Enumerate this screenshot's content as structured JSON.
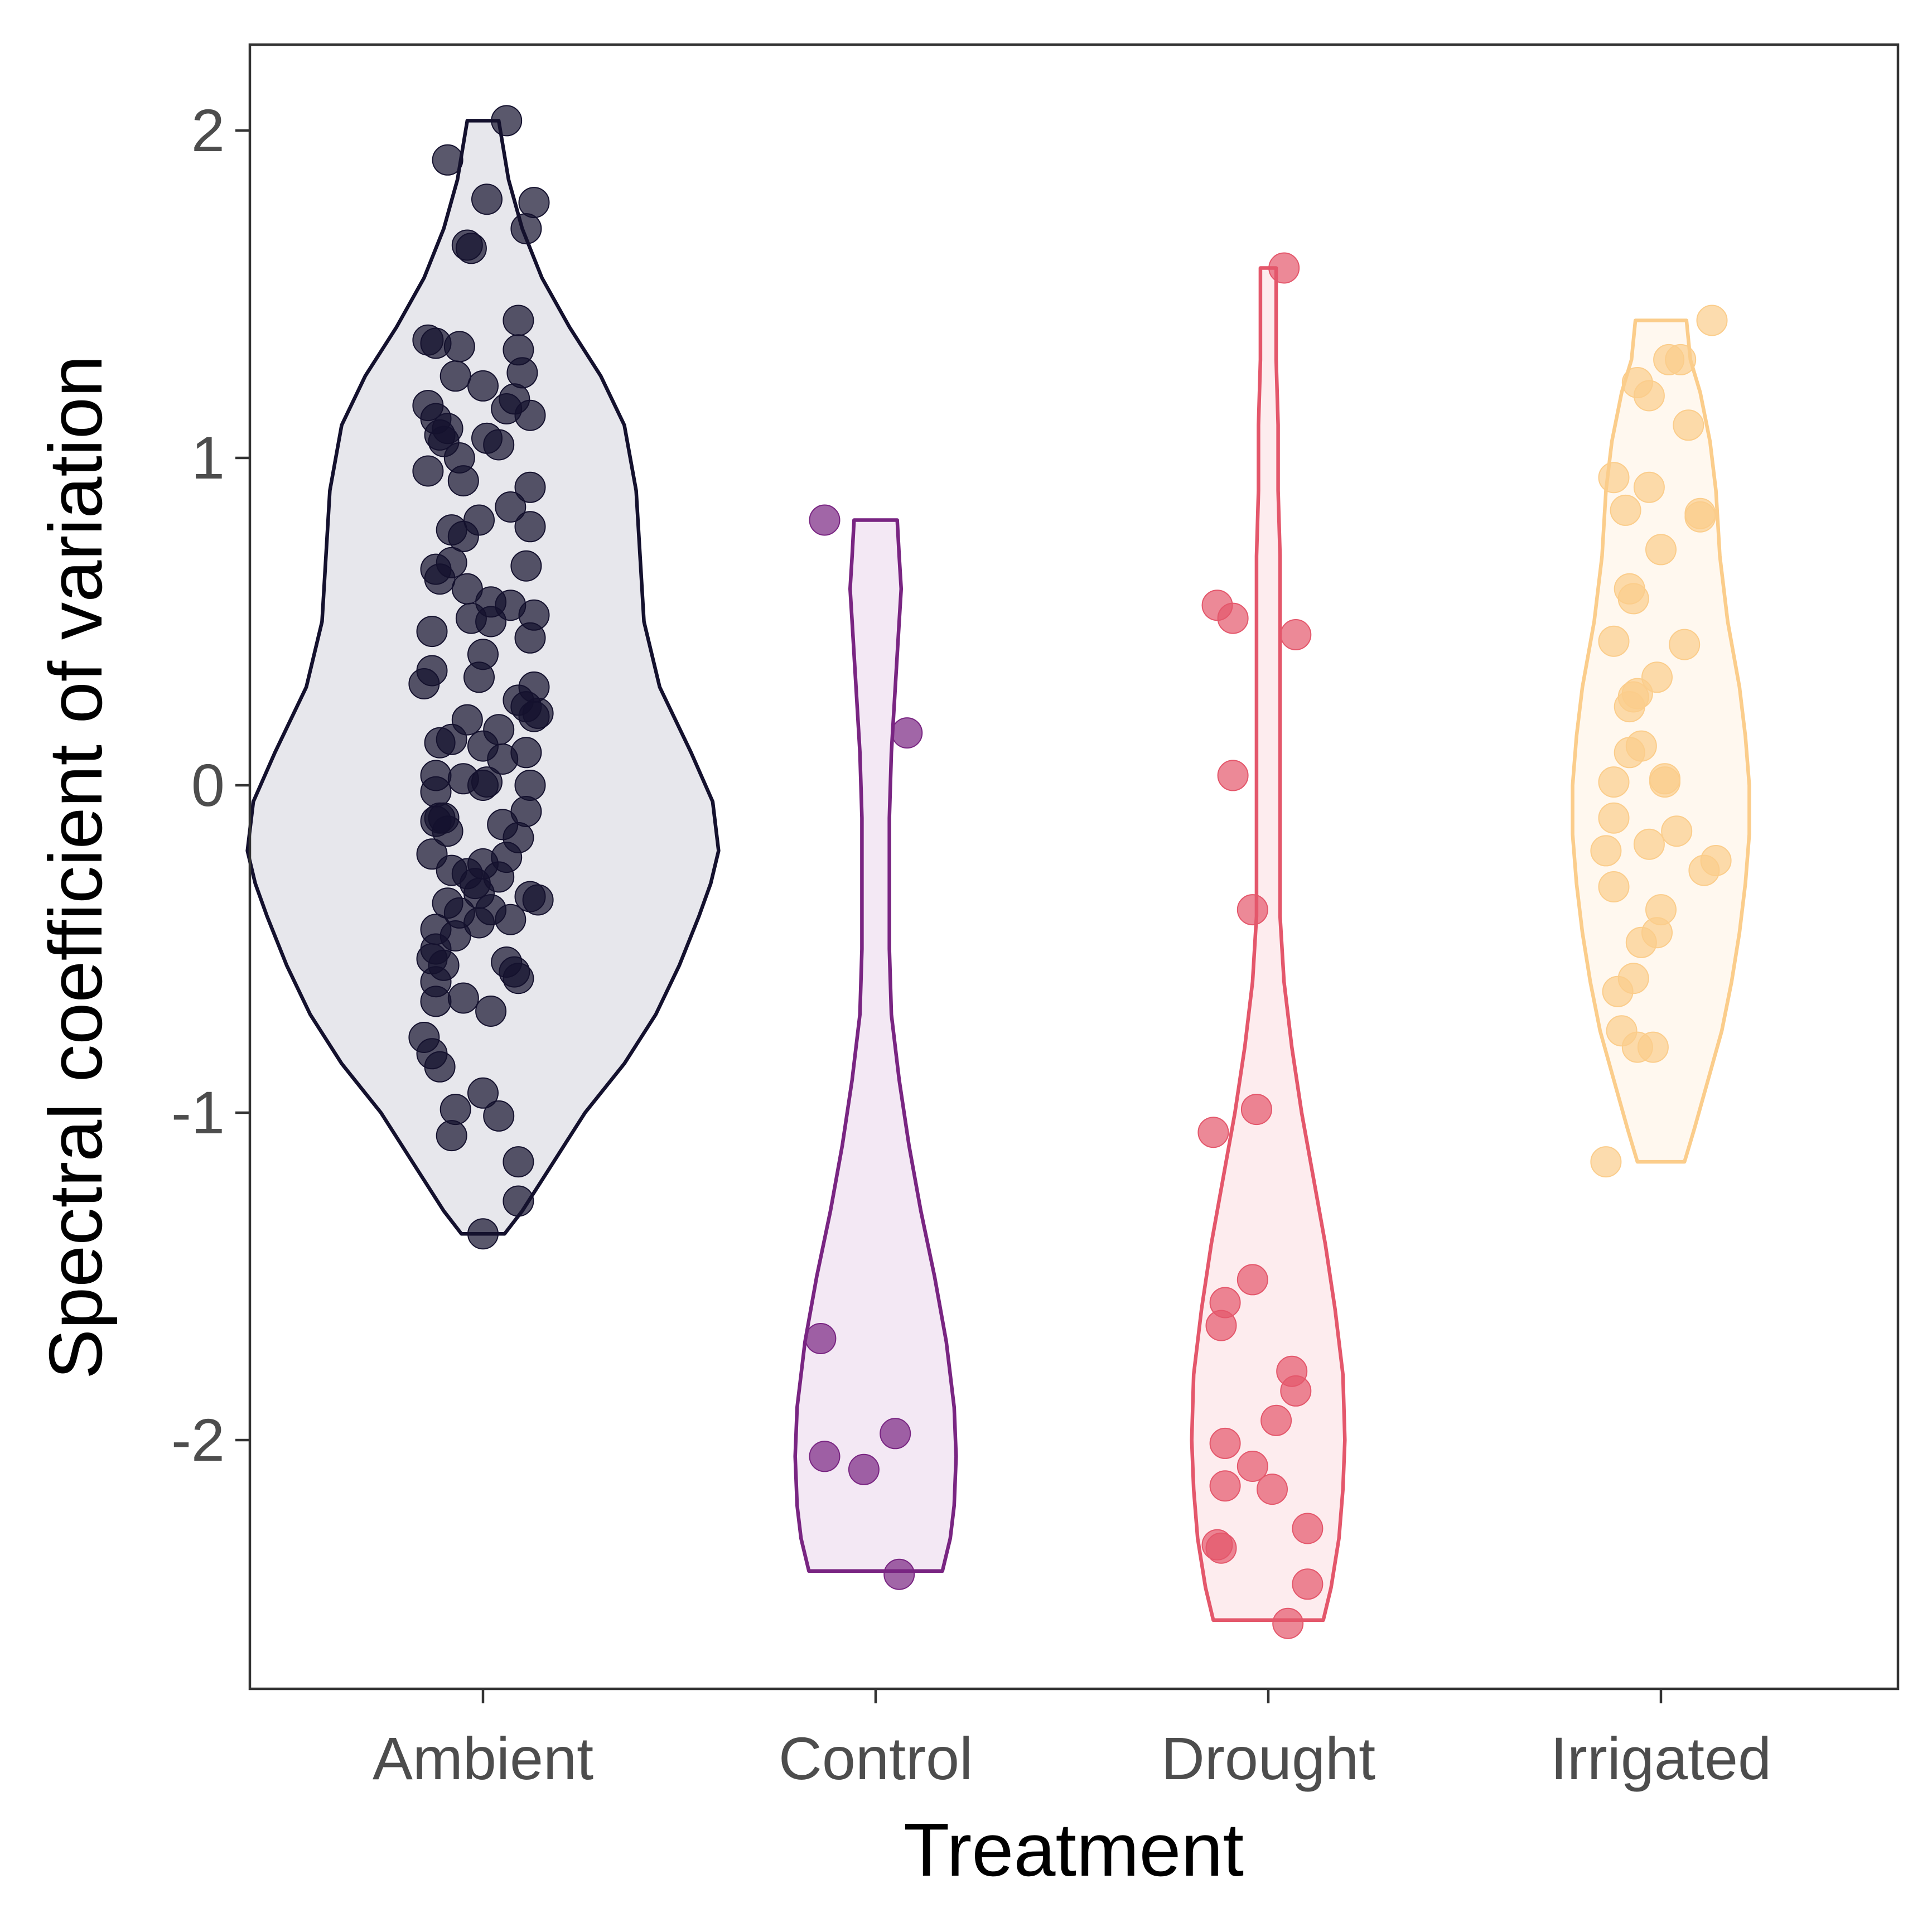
{
  "chart_data": {
    "type": "violin",
    "xlabel": "Treatment",
    "ylabel": "Spectral coefficient of variation",
    "categories": [
      "Ambient",
      "Control",
      "Drought",
      "Irrigated"
    ],
    "ylim": [
      -2.8,
      2.25
    ],
    "yticks": [
      -2,
      -1,
      0,
      1,
      2
    ],
    "ytick_labels": [
      "-2",
      "-1",
      "0",
      "1",
      "2"
    ],
    "grid": false,
    "legend": "none",
    "series": [
      {
        "category": "Ambient",
        "color": "#14112e",
        "fill": "#e7e7ec",
        "range": [
          -1.37,
          2.03
        ],
        "violin_width": [
          [
            -1.37,
            0.11
          ],
          [
            -1.3,
            0.2
          ],
          [
            -1.15,
            0.36
          ],
          [
            -1.0,
            0.52
          ],
          [
            -0.85,
            0.72
          ],
          [
            -0.7,
            0.88
          ],
          [
            -0.55,
            1.0
          ],
          [
            -0.4,
            1.1
          ],
          [
            -0.3,
            1.16
          ],
          [
            -0.2,
            1.2
          ],
          [
            -0.05,
            1.17
          ],
          [
            0.1,
            1.06
          ],
          [
            0.3,
            0.9
          ],
          [
            0.5,
            0.82
          ],
          [
            0.7,
            0.8
          ],
          [
            0.9,
            0.78
          ],
          [
            1.1,
            0.72
          ],
          [
            1.25,
            0.6
          ],
          [
            1.4,
            0.44
          ],
          [
            1.55,
            0.3
          ],
          [
            1.7,
            0.2
          ],
          [
            1.85,
            0.13
          ],
          [
            2.03,
            0.08
          ]
        ],
        "points": [
          2.03,
          1.91,
          1.79,
          1.78,
          1.7,
          1.65,
          1.64,
          1.42,
          1.36,
          1.35,
          1.34,
          1.33,
          1.26,
          1.25,
          1.22,
          1.18,
          1.16,
          1.15,
          1.13,
          1.12,
          1.09,
          1.07,
          1.06,
          1.05,
          1.04,
          1.0,
          0.96,
          0.93,
          0.91,
          0.85,
          0.81,
          0.79,
          0.78,
          0.76,
          0.68,
          0.67,
          0.66,
          0.63,
          0.6,
          0.56,
          0.55,
          0.52,
          0.51,
          0.5,
          0.47,
          0.45,
          0.4,
          0.35,
          0.33,
          0.31,
          0.3,
          0.26,
          0.24,
          0.22,
          0.21,
          0.2,
          0.17,
          0.14,
          0.13,
          0.12,
          0.1,
          0.08,
          0.03,
          0.02,
          0.01,
          0.0,
          0.0,
          -0.02,
          -0.08,
          -0.1,
          -0.1,
          -0.11,
          -0.12,
          -0.14,
          -0.16,
          -0.21,
          -0.22,
          -0.24,
          -0.26,
          -0.27,
          -0.28,
          -0.3,
          -0.33,
          -0.34,
          -0.35,
          -0.36,
          -0.38,
          -0.39,
          -0.41,
          -0.42,
          -0.44,
          -0.46,
          -0.5,
          -0.53,
          -0.54,
          -0.55,
          -0.57,
          -0.59,
          -0.6,
          -0.65,
          -0.66,
          -0.69,
          -0.77,
          -0.82,
          -0.86,
          -0.94,
          -0.99,
          -1.01,
          -1.07,
          -1.15,
          -1.27,
          -1.37
        ],
        "jitter": [
          0.06,
          -0.09,
          0.01,
          0.13,
          0.11,
          -0.04,
          -0.03,
          0.09,
          -0.14,
          -0.12,
          -0.06,
          0.09,
          0.1,
          -0.07,
          0.0,
          0.08,
          -0.14,
          0.06,
          0.12,
          -0.12,
          -0.09,
          -0.11,
          0.01,
          -0.1,
          0.04,
          -0.06,
          -0.14,
          -0.05,
          0.12,
          0.07,
          -0.01,
          0.12,
          -0.08,
          -0.05,
          -0.08,
          0.11,
          -0.12,
          -0.11,
          -0.04,
          0.02,
          0.07,
          0.13,
          -0.03,
          0.02,
          -0.13,
          0.12,
          0.0,
          -0.13,
          -0.01,
          -0.15,
          0.13,
          0.09,
          0.11,
          0.14,
          0.13,
          -0.04,
          0.04,
          -0.08,
          -0.11,
          0.0,
          0.11,
          0.05,
          -0.12,
          -0.05,
          0.01,
          0.0,
          0.12,
          -0.12,
          0.11,
          -0.11,
          -0.1,
          -0.12,
          0.05,
          -0.09,
          0.09,
          -0.13,
          0.06,
          0.0,
          -0.08,
          -0.04,
          0.04,
          -0.02,
          -0.01,
          0.12,
          0.14,
          -0.09,
          0.02,
          -0.06,
          0.07,
          -0.01,
          -0.12,
          -0.07,
          -0.12,
          -0.13,
          0.06,
          -0.1,
          0.08,
          0.09,
          -0.12,
          -0.05,
          -0.12,
          0.02,
          -0.15,
          -0.13,
          -0.11,
          0.0,
          -0.07,
          0.04,
          -0.08,
          0.09,
          0.09,
          0.0
        ]
      },
      {
        "category": "Control",
        "color": "#792582",
        "fill": "#f3e8f4",
        "range": [
          -2.4,
          0.81
        ],
        "violin_width": [
          [
            -2.4,
            0.34
          ],
          [
            -2.3,
            0.38
          ],
          [
            -2.2,
            0.4
          ],
          [
            -2.05,
            0.41
          ],
          [
            -1.9,
            0.4
          ],
          [
            -1.7,
            0.36
          ],
          [
            -1.5,
            0.3
          ],
          [
            -1.3,
            0.23
          ],
          [
            -1.1,
            0.17
          ],
          [
            -0.9,
            0.12
          ],
          [
            -0.7,
            0.08
          ],
          [
            -0.5,
            0.07
          ],
          [
            -0.3,
            0.07
          ],
          [
            -0.1,
            0.07
          ],
          [
            0.1,
            0.08
          ],
          [
            0.3,
            0.1
          ],
          [
            0.5,
            0.12
          ],
          [
            0.6,
            0.13
          ],
          [
            0.7,
            0.12
          ],
          [
            0.81,
            0.11
          ]
        ],
        "points": [
          0.81,
          0.16,
          -1.69,
          -1.98,
          -2.05,
          -2.09,
          -2.41
        ],
        "jitter": [
          -0.13,
          0.08,
          -0.14,
          0.05,
          -0.13,
          -0.03,
          0.06
        ]
      },
      {
        "category": "Drought",
        "color": "#e4576b",
        "fill": "#fdecee",
        "range": [
          -2.55,
          1.58
        ],
        "violin_width": [
          [
            -2.55,
            0.28
          ],
          [
            -2.45,
            0.32
          ],
          [
            -2.3,
            0.36
          ],
          [
            -2.15,
            0.38
          ],
          [
            -2.0,
            0.39
          ],
          [
            -1.8,
            0.38
          ],
          [
            -1.6,
            0.34
          ],
          [
            -1.4,
            0.29
          ],
          [
            -1.2,
            0.23
          ],
          [
            -1.0,
            0.17
          ],
          [
            -0.8,
            0.12
          ],
          [
            -0.6,
            0.08
          ],
          [
            -0.4,
            0.06
          ],
          [
            -0.2,
            0.06
          ],
          [
            0.0,
            0.06
          ],
          [
            0.2,
            0.06
          ],
          [
            0.4,
            0.06
          ],
          [
            0.55,
            0.06
          ],
          [
            0.7,
            0.06
          ],
          [
            0.9,
            0.05
          ],
          [
            1.1,
            0.05
          ],
          [
            1.3,
            0.04
          ],
          [
            1.58,
            0.04
          ]
        ],
        "points": [
          1.58,
          0.55,
          0.51,
          0.46,
          0.03,
          -0.38,
          -0.99,
          -1.06,
          -1.51,
          -1.58,
          -1.65,
          -1.79,
          -1.85,
          -1.94,
          -2.01,
          -2.08,
          -2.14,
          -2.15,
          -2.27,
          -2.32,
          -2.33,
          -2.44,
          -2.56
        ],
        "jitter": [
          0.04,
          -0.13,
          -0.09,
          0.07,
          -0.09,
          -0.04,
          -0.03,
          -0.14,
          -0.04,
          -0.11,
          -0.12,
          0.06,
          0.07,
          0.02,
          -0.11,
          -0.04,
          -0.11,
          0.01,
          0.1,
          -0.13,
          -0.12,
          0.1,
          0.05
        ]
      },
      {
        "category": "Irrigated",
        "color": "#fbcd8b",
        "fill": "#fff8ef",
        "range": [
          -1.15,
          1.42
        ],
        "violin_width": [
          [
            -1.15,
            0.12
          ],
          [
            -1.05,
            0.17
          ],
          [
            -0.9,
            0.24
          ],
          [
            -0.75,
            0.31
          ],
          [
            -0.6,
            0.36
          ],
          [
            -0.45,
            0.4
          ],
          [
            -0.3,
            0.43
          ],
          [
            -0.15,
            0.45
          ],
          [
            0.0,
            0.45
          ],
          [
            0.15,
            0.43
          ],
          [
            0.3,
            0.4
          ],
          [
            0.5,
            0.34
          ],
          [
            0.7,
            0.3
          ],
          [
            0.9,
            0.28
          ],
          [
            1.05,
            0.25
          ],
          [
            1.2,
            0.2
          ],
          [
            1.3,
            0.15
          ],
          [
            1.42,
            0.13
          ]
        ],
        "points": [
          1.42,
          1.3,
          1.3,
          1.23,
          1.19,
          1.1,
          0.94,
          0.91,
          0.84,
          0.83,
          0.82,
          0.72,
          0.6,
          0.57,
          0.44,
          0.43,
          0.33,
          0.28,
          0.27,
          0.24,
          0.12,
          0.1,
          0.02,
          0.01,
          0.01,
          -0.1,
          -0.14,
          -0.18,
          -0.2,
          -0.23,
          -0.26,
          -0.31,
          -0.38,
          -0.45,
          -0.48,
          -0.59,
          -0.63,
          -0.75,
          -0.8,
          -0.8,
          -1.15
        ],
        "jitter": [
          0.13,
          0.02,
          0.05,
          -0.06,
          -0.03,
          0.07,
          -0.12,
          -0.03,
          -0.09,
          0.1,
          0.1,
          0.0,
          -0.08,
          -0.07,
          -0.12,
          0.06,
          -0.01,
          -0.06,
          -0.07,
          -0.08,
          -0.05,
          -0.08,
          0.01,
          -0.12,
          0.01,
          -0.12,
          0.04,
          -0.03,
          -0.14,
          0.14,
          0.11,
          -0.12,
          0.0,
          -0.01,
          -0.05,
          -0.07,
          -0.11,
          -0.1,
          -0.06,
          -0.02,
          -0.14
        ]
      }
    ]
  }
}
